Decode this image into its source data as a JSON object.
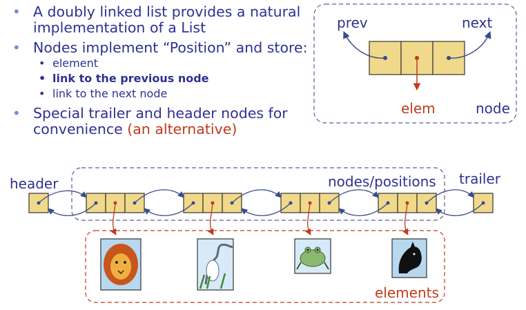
{
  "bullets": {
    "item1": "A doubly linked list provides a natural implementation of a List",
    "item2": "Nodes implement “Position” and store:",
    "sub1": "element",
    "sub2": "link to the previous node",
    "sub3": "link to the next node",
    "item3_main": "Special trailer and header nodes for convenience",
    "item3_alt": "(an alternative)"
  },
  "node_diagram": {
    "prev_label": "prev",
    "next_label": "next",
    "elem_label": "elem",
    "node_label": "node"
  },
  "list_diagram": {
    "header_label": "header",
    "trailer_label": "trailer",
    "nodes_label": "nodes/positions",
    "elements_label": "elements",
    "elements": [
      "lion-picture",
      "heron-picture",
      "frog-picture",
      "horse-picture"
    ]
  },
  "colors": {
    "text_blue": "#2e3192",
    "bullet_blue": "#6b8fd6",
    "accent_red": "#c0391b",
    "node_fill": "#f0d98a",
    "link_blue": "#3a4a8c",
    "box_dash_blue": "#5a5a9a"
  }
}
